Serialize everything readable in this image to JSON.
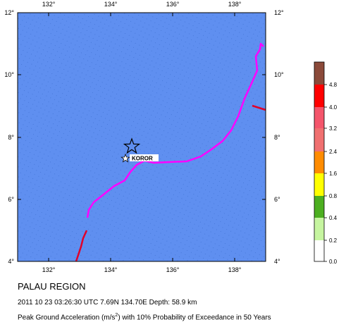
{
  "map": {
    "colors": {
      "ocean": "#5f8ff0",
      "plate_boundary": "#ff00ff",
      "trench": "#e0002a",
      "frame": "#000000"
    },
    "lon_ticks": [
      "132°",
      "134°",
      "136°",
      "138°"
    ],
    "lat_ticks": [
      "12°",
      "10°",
      "8°",
      "6°",
      "4°"
    ],
    "city": {
      "name": "KOROR"
    },
    "epicenter_icon": "star-icon",
    "city_icon": "star-marker-icon"
  },
  "scale": {
    "labels": [
      "4.8",
      "4.0",
      "3.2",
      "2.4",
      "1.6",
      "0.8",
      "0.4",
      "0.2",
      "0.0"
    ],
    "colors": [
      "#8b4a3a",
      "#ff0000",
      "#f4556b",
      "#f07070",
      "#ff8c00",
      "#ffff00",
      "#4caf20",
      "#c6f5a0",
      "#ffffff"
    ]
  },
  "captions": {
    "region": "PALAU REGION",
    "event": "2011 10 23 03:26:30 UTC 7.69N 134.70E Depth: 58.9 km",
    "pga_prefix": "Peak Ground Acceleration (m/s",
    "pga_sup": "2",
    "pga_suffix": ") with 10% Probability of Exceedance in 50 Years"
  }
}
